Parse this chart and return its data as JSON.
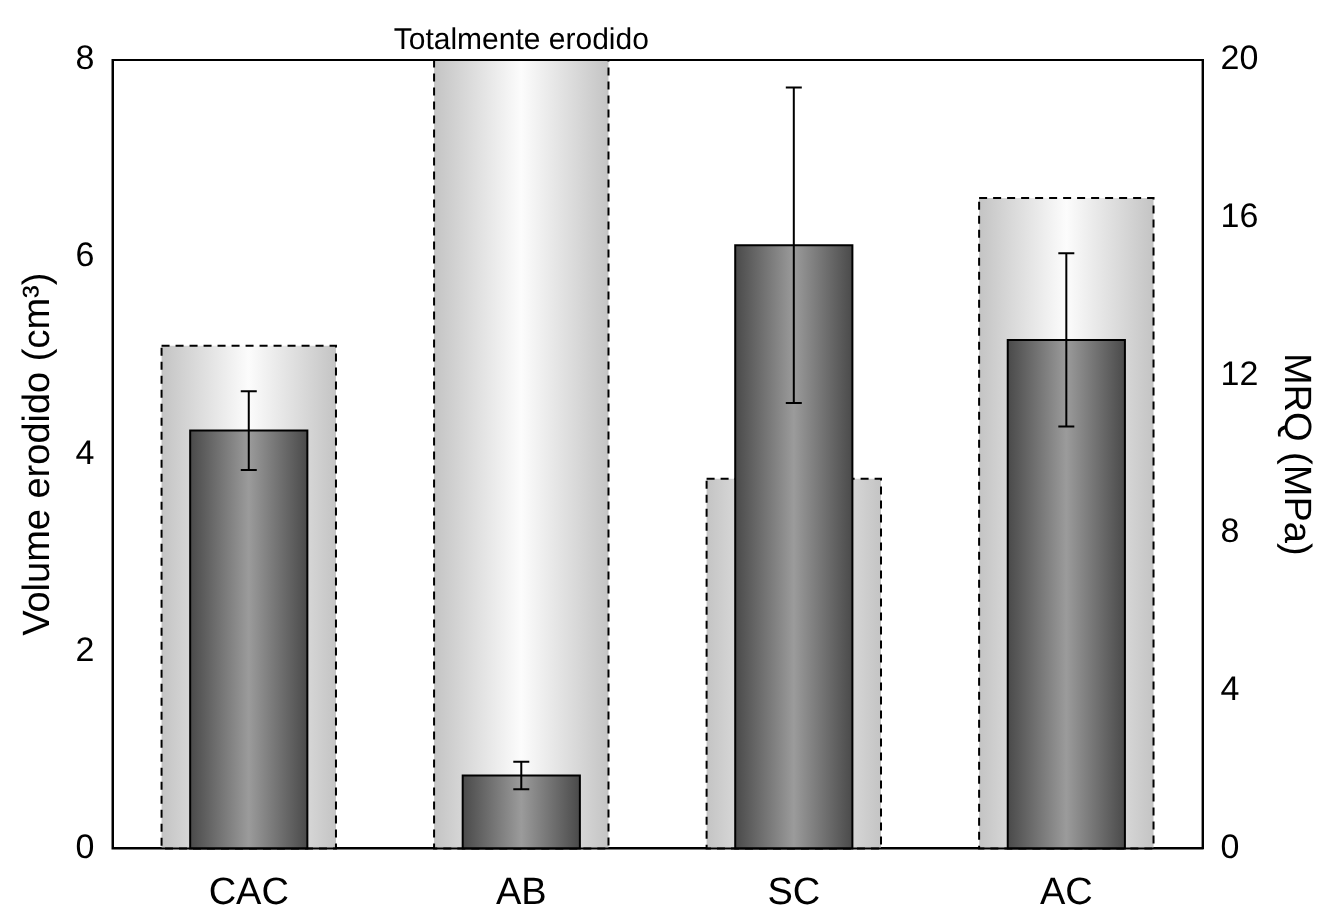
{
  "chart_data": {
    "type": "bar",
    "categories": [
      "CAC",
      "AB",
      "SC",
      "AC"
    ],
    "ylabel": "Volume erodido (cm³)",
    "y2label": "MRQ (MPa)",
    "series": [
      {
        "values": [
          5.1,
          8,
          3.75,
          6.6
        ],
        "color": "#c4c4c4",
        "line_style": "dashed"
      },
      {
        "values": [
          10.6,
          1.85,
          15.3,
          12.9
        ],
        "color": "#4a4a4a",
        "axis": "y2",
        "errors": [
          1.0,
          0.35,
          4.0,
          2.2
        ]
      }
    ],
    "ylim": [
      0,
      8
    ],
    "yticks": [
      0,
      2,
      4,
      6,
      8
    ],
    "y2lim": [
      0,
      20
    ],
    "y2ticks": [
      0,
      4,
      8,
      12,
      16,
      20
    ],
    "annotations": [
      {
        "text": "Totalmente erodido",
        "x": "AB",
        "y": 8
      }
    ],
    "grid": false,
    "legend": false
  }
}
